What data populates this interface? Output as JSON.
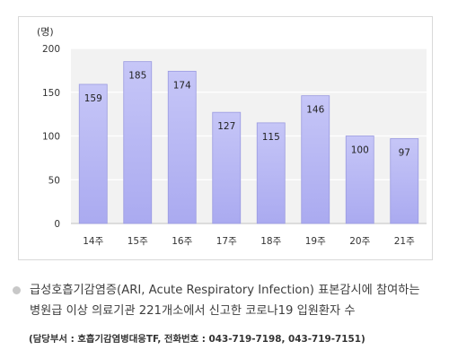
{
  "chart_data": {
    "type": "bar",
    "unit_label": "(명)",
    "categories": [
      "14주",
      "15주",
      "16주",
      "17주",
      "18주",
      "19주",
      "20주",
      "21주"
    ],
    "values": [
      159,
      185,
      174,
      127,
      115,
      146,
      100,
      97
    ],
    "ylim": [
      0,
      200
    ],
    "yticks": [
      0,
      50,
      100,
      150,
      200
    ],
    "grid": true,
    "legend": "none",
    "colors": {
      "bar_fill": "#aaaaf0",
      "bar_top": "#c6c6f7",
      "bar_stroke": "#9a9ae0",
      "plot_background": "#f2f2f2",
      "grid": "#ffffff"
    }
  },
  "caption": {
    "bullet_icon": "circle-bullet-icon",
    "line1": "급성호흡기감염증(ARI, Acute Respiratory Infection) 표본감시에 참여하는",
    "line2": "병원급 이상 의료기관 221개소에서 신고한 코로나19 입원환자 수"
  },
  "contact": "(담당부서 : 호흡기감염병대응TF, 전화번호 : 043-719-7198, 043-719-7151)"
}
